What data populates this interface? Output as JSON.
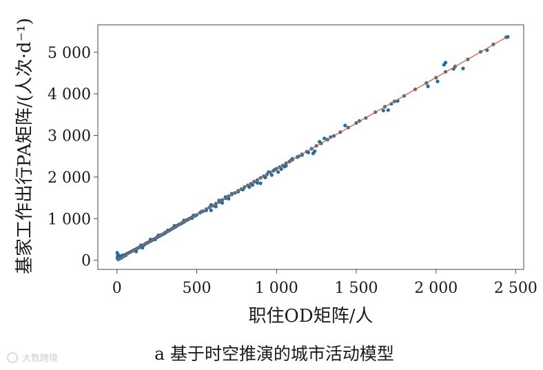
{
  "chart_data": {
    "type": "scatter",
    "xlabel": "职住OD矩阵/人",
    "ylabel": "基家工作出行PA矩阵/(人次·d⁻¹)",
    "xlim": [
      -120,
      2550
    ],
    "ylim": [
      -220,
      5660
    ],
    "x_ticks": [
      0,
      500,
      1000,
      1500,
      2000,
      2500
    ],
    "x_tick_labels": [
      "0",
      "500",
      "1 000",
      "1 500",
      "2 000",
      "2 500"
    ],
    "y_ticks": [
      0,
      1000,
      2000,
      3000,
      4000,
      5000
    ],
    "y_tick_labels": [
      "0",
      "1 000",
      "2 000",
      "3 000",
      "4 000",
      "5 000"
    ],
    "grid": false,
    "point_color": "#1f6f9f",
    "fit_line": {
      "x": [
        0,
        2450
      ],
      "y": [
        0,
        5380
      ],
      "color": "#e0593a"
    },
    "points": [
      [
        2,
        180
      ],
      [
        4,
        90
      ],
      [
        3,
        40
      ],
      [
        6,
        130
      ],
      [
        8,
        20
      ],
      [
        10,
        60
      ],
      [
        12,
        110
      ],
      [
        15,
        40
      ],
      [
        18,
        70
      ],
      [
        22,
        100
      ],
      [
        25,
        50
      ],
      [
        30,
        80
      ],
      [
        35,
        120
      ],
      [
        40,
        90
      ],
      [
        45,
        110
      ],
      [
        50,
        130
      ],
      [
        55,
        120
      ],
      [
        60,
        150
      ],
      [
        70,
        170
      ],
      [
        80,
        190
      ],
      [
        90,
        210
      ],
      [
        100,
        230
      ],
      [
        110,
        250
      ],
      [
        120,
        270
      ],
      [
        130,
        290
      ],
      [
        140,
        310
      ],
      [
        150,
        330
      ],
      [
        160,
        350
      ],
      [
        170,
        370
      ],
      [
        180,
        400
      ],
      [
        190,
        420
      ],
      [
        200,
        440
      ],
      [
        210,
        460
      ],
      [
        220,
        480
      ],
      [
        230,
        505
      ],
      [
        240,
        520
      ],
      [
        250,
        550
      ],
      [
        260,
        570
      ],
      [
        270,
        590
      ],
      [
        280,
        610
      ],
      [
        290,
        630
      ],
      [
        300,
        660
      ],
      [
        310,
        680
      ],
      [
        320,
        700
      ],
      [
        330,
        720
      ],
      [
        340,
        745
      ],
      [
        350,
        770
      ],
      [
        360,
        790
      ],
      [
        370,
        810
      ],
      [
        380,
        840
      ],
      [
        390,
        860
      ],
      [
        400,
        880
      ],
      [
        410,
        900
      ],
      [
        420,
        920
      ],
      [
        430,
        950
      ],
      [
        440,
        970
      ],
      [
        450,
        990
      ],
      [
        460,
        1010
      ],
      [
        470,
        1030
      ],
      [
        480,
        1060
      ],
      [
        490,
        1070
      ],
      [
        500,
        1090
      ],
      [
        520,
        1140
      ],
      [
        540,
        1180
      ],
      [
        560,
        1230
      ],
      [
        580,
        1270
      ],
      [
        600,
        1310
      ],
      [
        620,
        1360
      ],
      [
        640,
        1400
      ],
      [
        660,
        1450
      ],
      [
        680,
        1490
      ],
      [
        700,
        1540
      ],
      [
        720,
        1580
      ],
      [
        740,
        1620
      ],
      [
        760,
        1670
      ],
      [
        780,
        1710
      ],
      [
        800,
        1760
      ],
      [
        820,
        1800
      ],
      [
        840,
        1840
      ],
      [
        860,
        1890
      ],
      [
        880,
        1930
      ],
      [
        900,
        1980
      ],
      [
        920,
        2020
      ],
      [
        940,
        2060
      ],
      [
        960,
        2110
      ],
      [
        980,
        2150
      ],
      [
        1000,
        2200
      ],
      [
        1020,
        2240
      ],
      [
        1040,
        2280
      ],
      [
        1060,
        2330
      ],
      [
        1080,
        2370
      ],
      [
        1100,
        2420
      ],
      [
        1130,
        2480
      ],
      [
        1160,
        2550
      ],
      [
        1190,
        2610
      ],
      [
        1220,
        2680
      ],
      [
        1250,
        2750
      ],
      [
        1280,
        2810
      ],
      [
        1320,
        2900
      ],
      [
        1360,
        2990
      ],
      [
        1400,
        3080
      ],
      [
        1450,
        3190
      ],
      [
        1500,
        3300
      ],
      [
        1560,
        3420
      ],
      [
        1620,
        3560
      ],
      [
        1680,
        3690
      ],
      [
        1740,
        3820
      ],
      [
        1800,
        3950
      ],
      [
        1870,
        4110
      ],
      [
        1940,
        4260
      ],
      [
        2000,
        4390
      ],
      [
        2060,
        4530
      ],
      [
        2120,
        4660
      ],
      [
        2200,
        4830
      ],
      [
        2280,
        5010
      ],
      [
        2360,
        5190
      ],
      [
        2440,
        5360
      ],
      [
        120,
        210
      ],
      [
        160,
        300
      ],
      [
        210,
        500
      ],
      [
        260,
        600
      ],
      [
        320,
        720
      ],
      [
        360,
        830
      ],
      [
        420,
        960
      ],
      [
        470,
        1010
      ],
      [
        530,
        1170
      ],
      [
        590,
        1330
      ],
      [
        640,
        1440
      ],
      [
        680,
        1520
      ],
      [
        590,
        1200
      ],
      [
        660,
        1380
      ],
      [
        720,
        1600
      ],
      [
        790,
        1700
      ],
      [
        850,
        1810
      ],
      [
        900,
        1850
      ],
      [
        930,
        1990
      ],
      [
        990,
        2180
      ],
      [
        1030,
        2190
      ],
      [
        1050,
        2250
      ],
      [
        1100,
        2440
      ],
      [
        1140,
        2500
      ],
      [
        1200,
        2590
      ],
      [
        1240,
        2620
      ],
      [
        1270,
        2850
      ],
      [
        1300,
        2930
      ],
      [
        1340,
        2960
      ],
      [
        1430,
        3240
      ],
      [
        1520,
        3350
      ],
      [
        1670,
        3600
      ],
      [
        1700,
        3610
      ],
      [
        1720,
        3760
      ],
      [
        1760,
        3830
      ],
      [
        1950,
        4180
      ],
      [
        2010,
        4300
      ],
      [
        2050,
        4700
      ],
      [
        2060,
        4750
      ],
      [
        2110,
        4600
      ],
      [
        2170,
        4610
      ],
      [
        2320,
        5050
      ],
      [
        2450,
        5370
      ],
      [
        150,
        360
      ],
      [
        240,
        500
      ],
      [
        300,
        650
      ],
      [
        420,
        940
      ],
      [
        480,
        1080
      ],
      [
        560,
        1200
      ],
      [
        620,
        1290
      ],
      [
        700,
        1480
      ],
      [
        760,
        1650
      ],
      [
        830,
        1760
      ],
      [
        880,
        1860
      ],
      [
        950,
        2120
      ],
      [
        970,
        2050
      ],
      [
        1010,
        2120
      ],
      [
        1060,
        2270
      ],
      [
        1090,
        2400
      ],
      [
        1160,
        2530
      ],
      [
        1230,
        2570
      ]
    ]
  },
  "caption": "a 基于时空推演的城市活动模型",
  "watermark": "大数跨境"
}
